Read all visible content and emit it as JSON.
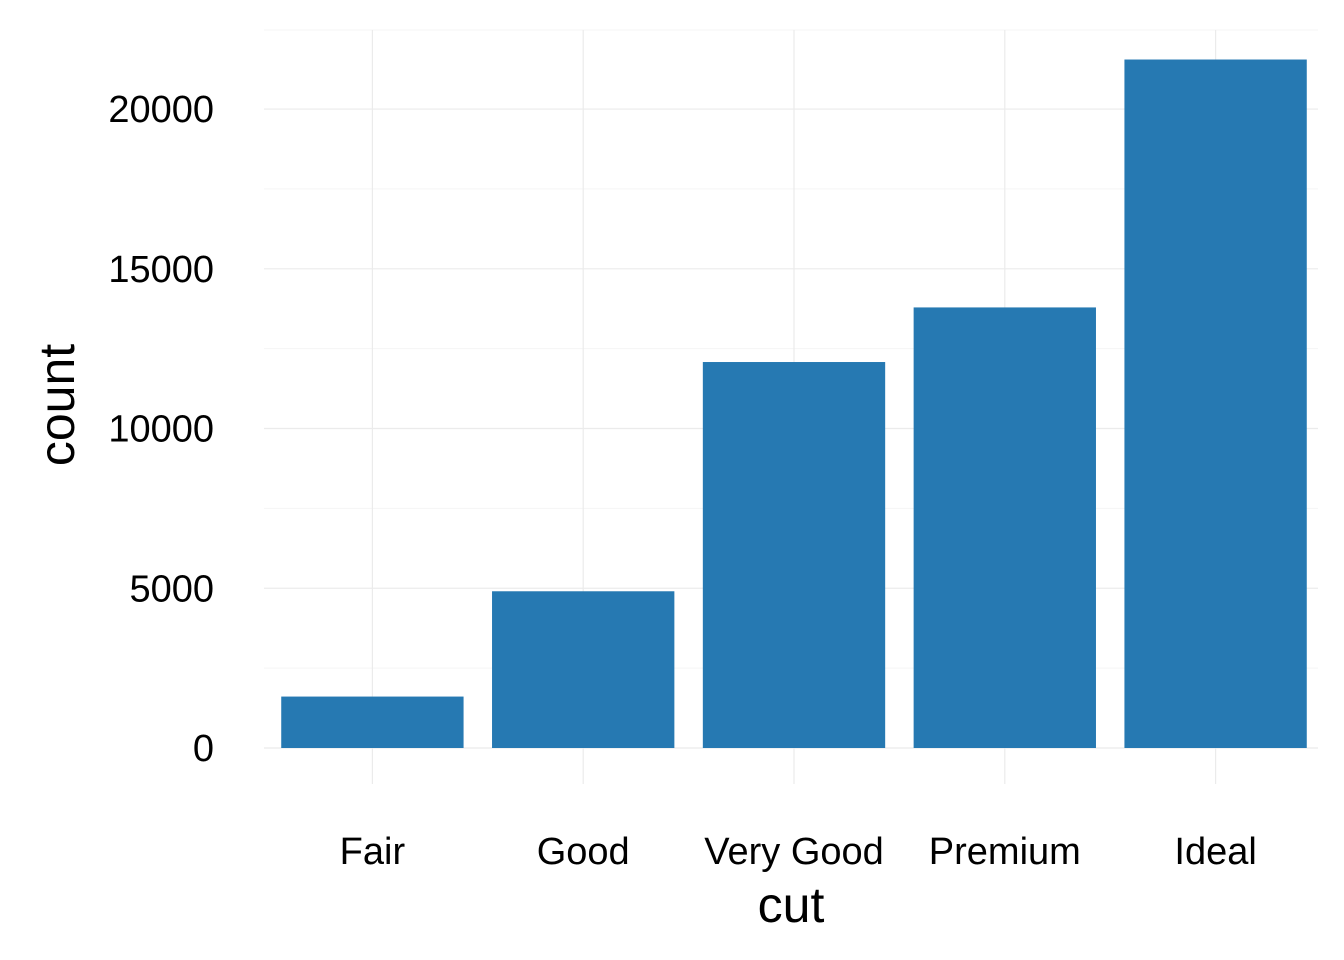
{
  "chart_data": {
    "type": "bar",
    "categories": [
      "Fair",
      "Good",
      "Very Good",
      "Premium",
      "Ideal"
    ],
    "values": [
      1610,
      4906,
      12082,
      13791,
      21551
    ],
    "xlabel": "cut",
    "ylabel": "count",
    "ylim": [
      0,
      22000
    ],
    "yticks": [
      0,
      5000,
      10000,
      15000,
      20000
    ],
    "ytick_labels": [
      "0",
      "5000",
      "10000",
      "15000",
      "20000"
    ],
    "grid": true,
    "bar_color": "#2679B2"
  }
}
